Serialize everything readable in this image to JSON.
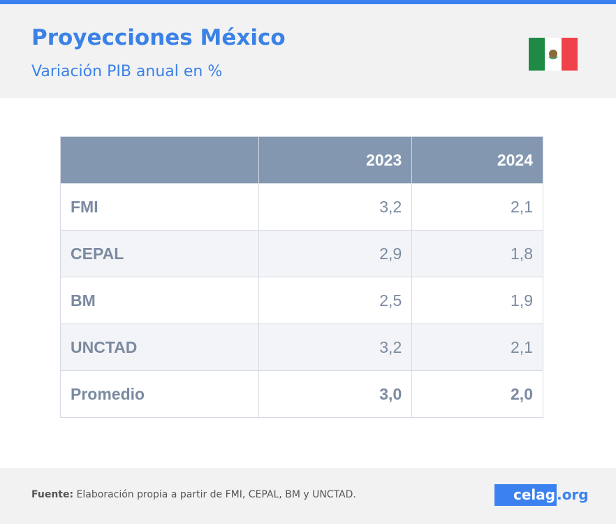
{
  "header": {
    "title": "Proyecciones México",
    "subtitle": "Variación PIB anual en %"
  },
  "table": {
    "columns": [
      "",
      "2023",
      "2024"
    ],
    "rows": [
      [
        "FMI",
        "3,2",
        "2,1"
      ],
      [
        "CEPAL",
        "2,9",
        "1,8"
      ],
      [
        "BM",
        "2,5",
        "1,9"
      ],
      [
        "UNCTAD",
        "3,2",
        "2,1"
      ],
      [
        "Promedio",
        "3,0",
        "2,0"
      ]
    ]
  },
  "footer": {
    "source_label": "Fuente:",
    "source_text": "Elaboración propia a partir de FMI, CEPAL, BM y UNCTAD.",
    "logo": "celag",
    "logo_suffix": ".org"
  }
}
